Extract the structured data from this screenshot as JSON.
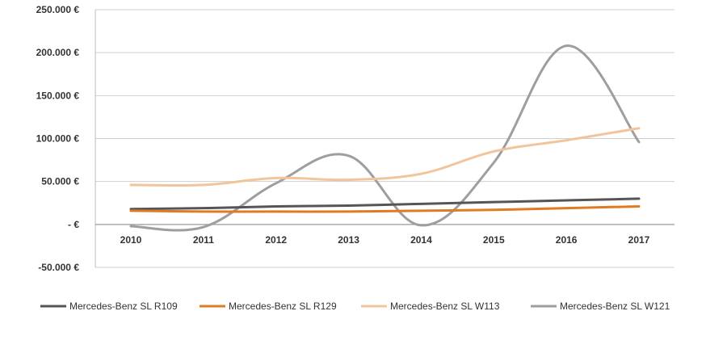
{
  "chart_data": {
    "type": "line",
    "title": "",
    "xlabel": "",
    "ylabel": "",
    "x": [
      "2010",
      "2011",
      "2012",
      "2013",
      "2014",
      "2015",
      "2016",
      "2017"
    ],
    "y_ticks": [
      250000,
      200000,
      150000,
      100000,
      50000,
      0,
      -50000
    ],
    "y_tick_labels": [
      "250.000 €",
      "200.000 €",
      "150.000 €",
      "100.000 €",
      "50.000 €",
      "- €",
      "-50.000 €"
    ],
    "ylim": [
      -50000,
      250000
    ],
    "grid": true,
    "legend_position": "bottom",
    "smooth": true,
    "series": [
      {
        "name": "Mercedes-Benz SL R109",
        "color": "#555555",
        "values": [
          18000,
          19000,
          21000,
          22000,
          24000,
          26000,
          28000,
          30000
        ]
      },
      {
        "name": "Mercedes-Benz SL R129",
        "color": "#e07b24",
        "values": [
          16000,
          15000,
          15000,
          15000,
          16000,
          17000,
          19000,
          21000
        ]
      },
      {
        "name": "Mercedes-Benz SL W113",
        "color": "#f2c49b",
        "values": [
          46000,
          46000,
          54000,
          52000,
          59000,
          85000,
          98000,
          112000
        ]
      },
      {
        "name": "Mercedes-Benz SL W121",
        "color": "#9e9e9e",
        "values": [
          -2000,
          -3000,
          48000,
          80000,
          -1000,
          72000,
          208000,
          96000
        ]
      }
    ]
  }
}
